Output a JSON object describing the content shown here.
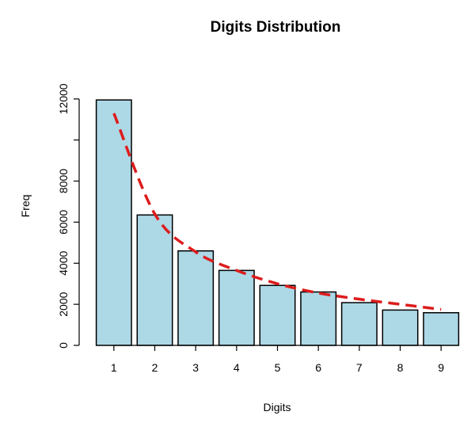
{
  "chart_data": {
    "type": "bar",
    "title": "Digits Distribution",
    "xlabel": "Digits",
    "ylabel": "Freq",
    "categories": [
      "1",
      "2",
      "3",
      "4",
      "5",
      "6",
      "7",
      "8",
      "9"
    ],
    "series": [
      {
        "type": "bar",
        "values": [
          11950,
          6350,
          4600,
          3650,
          2920,
          2600,
          2080,
          1720,
          1590
        ],
        "color": "#add8e6"
      },
      {
        "type": "line",
        "values": [
          11300,
          6400,
          4550,
          3650,
          3000,
          2550,
          2250,
          2000,
          1750
        ],
        "color": "#dd1c1c",
        "style": "dashed"
      }
    ],
    "ylim": [
      0,
      13500
    ],
    "yticks": [
      0,
      2000,
      4000,
      6000,
      8000,
      10000,
      12000
    ],
    "ytick_labels": [
      "0",
      "2000",
      "4000",
      "6000",
      "8000",
      "",
      "12000"
    ],
    "grid": false,
    "legend": "none"
  }
}
